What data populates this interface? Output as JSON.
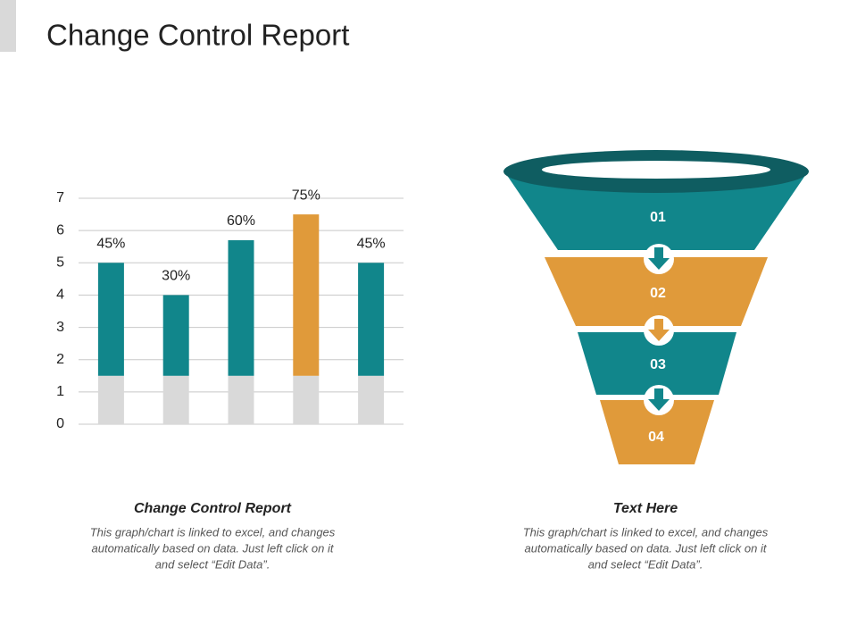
{
  "title": "Change Control Report",
  "chart_data": {
    "type": "stacked_bar",
    "categories": [
      null,
      null,
      null,
      null,
      null
    ],
    "series": [
      {
        "color": "#d9d9d9",
        "values": [
          1.5,
          1.5,
          1.5,
          1.5,
          1.5
        ]
      },
      {
        "colors": [
          "#11868b",
          "#11868b",
          "#11868b",
          "#e09a3a",
          "#11868b"
        ],
        "values": [
          3.5,
          2.5,
          4.2,
          5.0,
          3.5
        ]
      }
    ],
    "annotations": [
      "45%",
      "30%",
      "60%",
      "75%",
      "45%"
    ],
    "ylim": [
      0,
      7
    ],
    "yticks": [
      0,
      1,
      2,
      3,
      4,
      5,
      6,
      7
    ],
    "grid": true
  },
  "funnel": {
    "steps": [
      "01",
      "02",
      "03",
      "04"
    ]
  },
  "captions": [
    {
      "heading": "Change Control Report",
      "lines": [
        "This graph/chart is linked to excel, and changes",
        "automatically based on data. Just left click on it",
        "and select “Edit Data”."
      ]
    },
    {
      "heading": "Text Here",
      "lines": [
        "This graph/chart is linked to excel, and changes",
        "automatically based on data. Just left click on it",
        "and select “Edit Data”."
      ]
    }
  ]
}
